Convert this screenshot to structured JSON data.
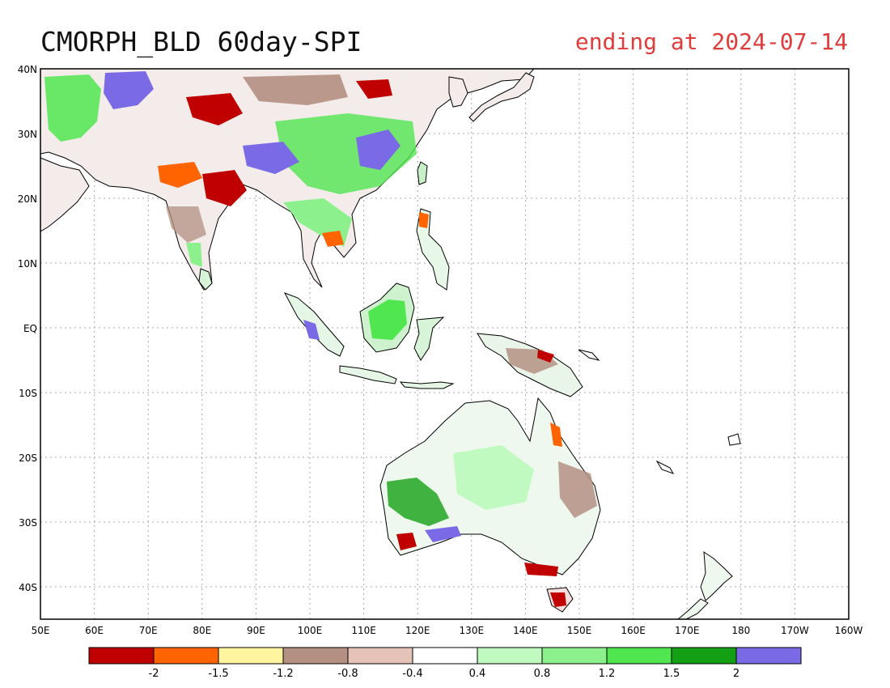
{
  "title": "CMORPH_BLD 60day-SPI",
  "subtitle": "ending at 2024-07-14",
  "colors": {
    "title": "#111111",
    "subtitle": "#e03c3c",
    "coast": "#000000",
    "grid": "#a8a8a8"
  },
  "axes": {
    "y_labels": [
      "40N",
      "30N",
      "20N",
      "10N",
      "EQ",
      "10S",
      "20S",
      "30S",
      "40S"
    ],
    "x_labels": [
      "50E",
      "60E",
      "70E",
      "80E",
      "90E",
      "100E",
      "110E",
      "120E",
      "130E",
      "140E",
      "150E",
      "160E",
      "170E",
      "180",
      "170W",
      "160W"
    ]
  },
  "legend": {
    "colors": [
      "#c00000",
      "#ff6400",
      "#fff5a0",
      "#b49082",
      "#e6c3b9",
      "#ffffff",
      "#c0fac0",
      "#8cf08c",
      "#50e650",
      "#14a014",
      "#7b6ae6"
    ],
    "labels": [
      "-2",
      "-1.5",
      "-1.2",
      "-0.8",
      "-0.4",
      "0.4",
      "0.8",
      "1.2",
      "1.5",
      "2"
    ]
  }
}
